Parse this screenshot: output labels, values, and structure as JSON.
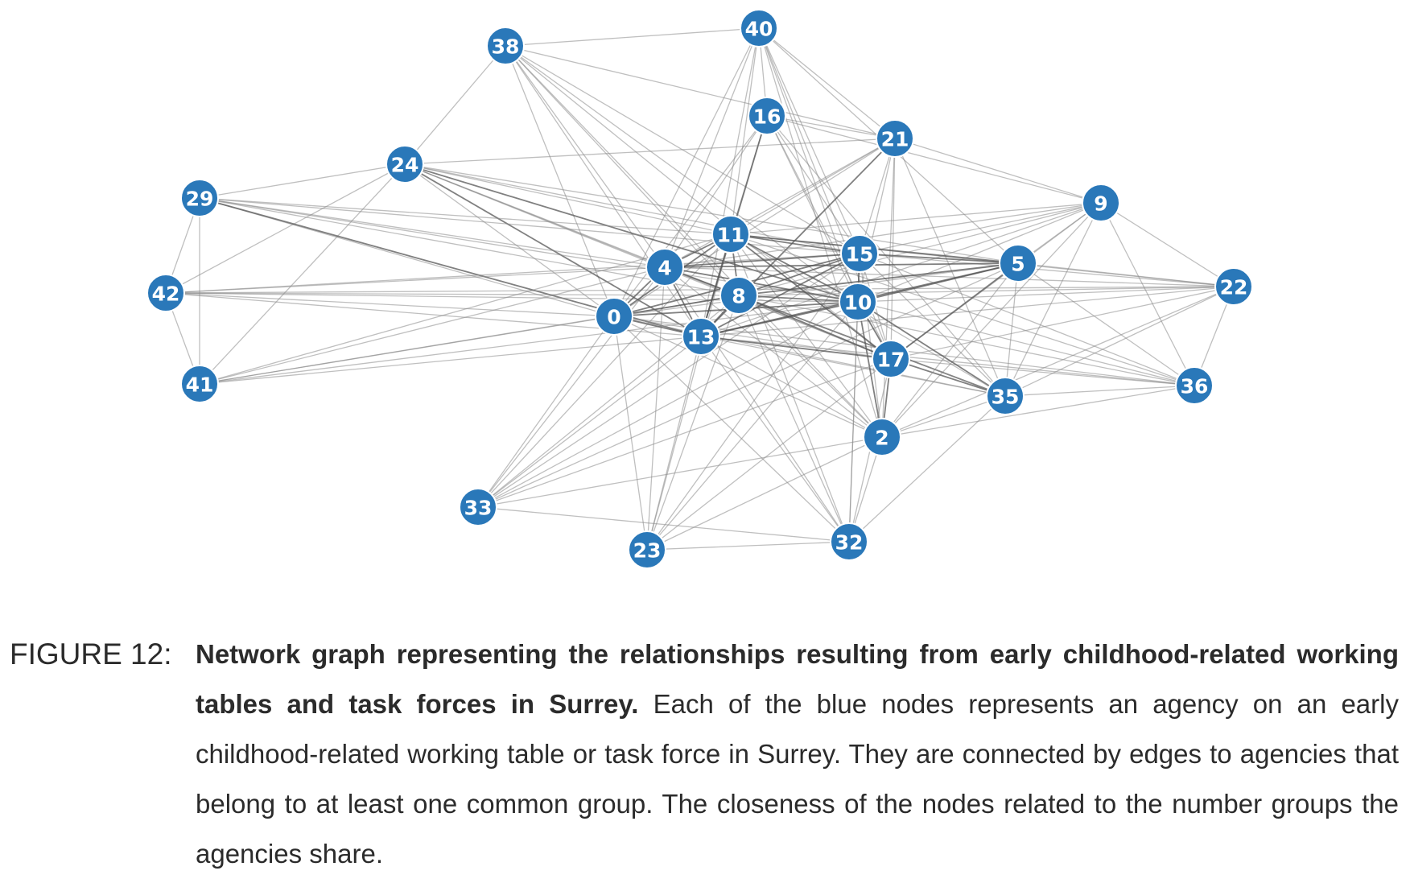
{
  "graph": {
    "nodes": [
      {
        "id": "0"
      },
      {
        "id": "2"
      },
      {
        "id": "4"
      },
      {
        "id": "5"
      },
      {
        "id": "8"
      },
      {
        "id": "9"
      },
      {
        "id": "10"
      },
      {
        "id": "11"
      },
      {
        "id": "13"
      },
      {
        "id": "15"
      },
      {
        "id": "16"
      },
      {
        "id": "17"
      },
      {
        "id": "21"
      },
      {
        "id": "22"
      },
      {
        "id": "23"
      },
      {
        "id": "24"
      },
      {
        "id": "29"
      },
      {
        "id": "32"
      },
      {
        "id": "33"
      },
      {
        "id": "35"
      },
      {
        "id": "36"
      },
      {
        "id": "38"
      },
      {
        "id": "40"
      },
      {
        "id": "41"
      },
      {
        "id": "42"
      }
    ],
    "node_color": "#2a78b9",
    "edge_color": "#8a8a8a",
    "edges": [
      [
        "38",
        "40"
      ],
      [
        "38",
        "24"
      ],
      [
        "38",
        "0"
      ],
      [
        "38",
        "4"
      ],
      [
        "38",
        "8"
      ],
      [
        "38",
        "13"
      ],
      [
        "38",
        "15"
      ],
      [
        "38",
        "10"
      ],
      [
        "38",
        "17"
      ],
      [
        "38",
        "21"
      ],
      [
        "38",
        "2"
      ],
      [
        "40",
        "16"
      ],
      [
        "40",
        "21"
      ],
      [
        "40",
        "11"
      ],
      [
        "40",
        "4"
      ],
      [
        "40",
        "13"
      ],
      [
        "40",
        "0"
      ],
      [
        "40",
        "15"
      ],
      [
        "40",
        "10"
      ],
      [
        "40",
        "17"
      ],
      [
        "40",
        "5"
      ],
      [
        "40",
        "2"
      ],
      [
        "16",
        "21"
      ],
      [
        "16",
        "11"
      ],
      [
        "16",
        "13"
      ],
      [
        "16",
        "4"
      ],
      [
        "16",
        "15"
      ],
      [
        "16",
        "10"
      ],
      [
        "16",
        "17"
      ],
      [
        "16",
        "9"
      ],
      [
        "16",
        "35"
      ],
      [
        "16",
        "0"
      ],
      [
        "21",
        "9"
      ],
      [
        "21",
        "11"
      ],
      [
        "21",
        "15"
      ],
      [
        "21",
        "10"
      ],
      [
        "21",
        "4"
      ],
      [
        "21",
        "13"
      ],
      [
        "21",
        "0"
      ],
      [
        "21",
        "17"
      ],
      [
        "21",
        "2"
      ],
      [
        "21",
        "35"
      ],
      [
        "21",
        "24"
      ],
      [
        "24",
        "29"
      ],
      [
        "24",
        "41"
      ],
      [
        "24",
        "11"
      ],
      [
        "24",
        "4"
      ],
      [
        "24",
        "8"
      ],
      [
        "24",
        "0"
      ],
      [
        "24",
        "13"
      ],
      [
        "24",
        "10"
      ],
      [
        "24",
        "15"
      ],
      [
        "24",
        "17"
      ],
      [
        "24",
        "5"
      ],
      [
        "24",
        "42"
      ],
      [
        "29",
        "42"
      ],
      [
        "29",
        "41"
      ],
      [
        "29",
        "4"
      ],
      [
        "29",
        "0"
      ],
      [
        "29",
        "13"
      ],
      [
        "29",
        "10"
      ],
      [
        "29",
        "8"
      ],
      [
        "29",
        "11"
      ],
      [
        "29",
        "15"
      ],
      [
        "42",
        "41"
      ],
      [
        "42",
        "4"
      ],
      [
        "42",
        "0"
      ],
      [
        "42",
        "10"
      ],
      [
        "42",
        "15"
      ],
      [
        "42",
        "8"
      ],
      [
        "42",
        "13"
      ],
      [
        "42",
        "22"
      ],
      [
        "41",
        "0"
      ],
      [
        "41",
        "4"
      ],
      [
        "41",
        "11"
      ],
      [
        "41",
        "8"
      ],
      [
        "41",
        "13"
      ],
      [
        "41",
        "10"
      ],
      [
        "9",
        "5"
      ],
      [
        "9",
        "15"
      ],
      [
        "9",
        "11"
      ],
      [
        "9",
        "8"
      ],
      [
        "9",
        "10"
      ],
      [
        "9",
        "4"
      ],
      [
        "9",
        "13"
      ],
      [
        "9",
        "17"
      ],
      [
        "9",
        "35"
      ],
      [
        "9",
        "2"
      ],
      [
        "9",
        "36"
      ],
      [
        "9",
        "22"
      ],
      [
        "22",
        "5"
      ],
      [
        "22",
        "10"
      ],
      [
        "22",
        "15"
      ],
      [
        "22",
        "8"
      ],
      [
        "22",
        "17"
      ],
      [
        "22",
        "13"
      ],
      [
        "22",
        "35"
      ],
      [
        "22",
        "2"
      ],
      [
        "22",
        "36"
      ],
      [
        "22",
        "4"
      ],
      [
        "22",
        "11"
      ],
      [
        "36",
        "35"
      ],
      [
        "36",
        "5"
      ],
      [
        "36",
        "10"
      ],
      [
        "36",
        "17"
      ],
      [
        "36",
        "8"
      ],
      [
        "36",
        "13"
      ],
      [
        "36",
        "15"
      ],
      [
        "36",
        "11"
      ],
      [
        "36",
        "2"
      ],
      [
        "36",
        "0"
      ],
      [
        "35",
        "2"
      ],
      [
        "35",
        "5"
      ],
      [
        "35",
        "17"
      ],
      [
        "35",
        "10"
      ],
      [
        "35",
        "15"
      ],
      [
        "35",
        "13"
      ],
      [
        "35",
        "8"
      ],
      [
        "35",
        "4"
      ],
      [
        "35",
        "11"
      ],
      [
        "35",
        "0"
      ],
      [
        "35",
        "32"
      ],
      [
        "2",
        "17"
      ],
      [
        "2",
        "10"
      ],
      [
        "2",
        "15"
      ],
      [
        "2",
        "13"
      ],
      [
        "2",
        "8"
      ],
      [
        "2",
        "0"
      ],
      [
        "2",
        "4"
      ],
      [
        "2",
        "11"
      ],
      [
        "2",
        "5"
      ],
      [
        "2",
        "33"
      ],
      [
        "2",
        "23"
      ],
      [
        "2",
        "32"
      ],
      [
        "33",
        "0"
      ],
      [
        "33",
        "4"
      ],
      [
        "33",
        "11"
      ],
      [
        "33",
        "8"
      ],
      [
        "33",
        "13"
      ],
      [
        "33",
        "15"
      ],
      [
        "33",
        "10"
      ],
      [
        "33",
        "17"
      ],
      [
        "33",
        "32"
      ],
      [
        "33",
        "5"
      ],
      [
        "23",
        "0"
      ],
      [
        "23",
        "4"
      ],
      [
        "23",
        "11"
      ],
      [
        "23",
        "8"
      ],
      [
        "23",
        "13"
      ],
      [
        "23",
        "15"
      ],
      [
        "23",
        "10"
      ],
      [
        "23",
        "17"
      ],
      [
        "23",
        "32"
      ],
      [
        "32",
        "0"
      ],
      [
        "32",
        "13"
      ],
      [
        "32",
        "8"
      ],
      [
        "32",
        "4"
      ],
      [
        "32",
        "15"
      ],
      [
        "32",
        "10"
      ],
      [
        "32",
        "17"
      ],
      [
        "32",
        "11"
      ],
      [
        "0",
        "4"
      ],
      [
        "0",
        "8"
      ],
      [
        "0",
        "11"
      ],
      [
        "0",
        "13"
      ],
      [
        "0",
        "15"
      ],
      [
        "0",
        "10"
      ],
      [
        "0",
        "17"
      ],
      [
        "0",
        "5"
      ],
      [
        "4",
        "11"
      ],
      [
        "4",
        "8"
      ],
      [
        "4",
        "13"
      ],
      [
        "4",
        "15"
      ],
      [
        "4",
        "10"
      ],
      [
        "4",
        "17"
      ],
      [
        "4",
        "5"
      ],
      [
        "11",
        "8"
      ],
      [
        "11",
        "13"
      ],
      [
        "11",
        "15"
      ],
      [
        "11",
        "10"
      ],
      [
        "11",
        "17"
      ],
      [
        "11",
        "5"
      ],
      [
        "8",
        "13"
      ],
      [
        "8",
        "15"
      ],
      [
        "8",
        "10"
      ],
      [
        "8",
        "17"
      ],
      [
        "8",
        "5"
      ],
      [
        "13",
        "15"
      ],
      [
        "13",
        "10"
      ],
      [
        "13",
        "17"
      ],
      [
        "13",
        "5"
      ],
      [
        "15",
        "10"
      ],
      [
        "15",
        "17"
      ],
      [
        "15",
        "5"
      ],
      [
        "10",
        "17"
      ],
      [
        "10",
        "5"
      ],
      [
        "17",
        "5"
      ]
    ],
    "strong_edges": [
      [
        "0",
        "4"
      ],
      [
        "0",
        "8"
      ],
      [
        "0",
        "11"
      ],
      [
        "0",
        "13"
      ],
      [
        "0",
        "15"
      ],
      [
        "0",
        "10"
      ],
      [
        "4",
        "11"
      ],
      [
        "4",
        "8"
      ],
      [
        "4",
        "13"
      ],
      [
        "4",
        "15"
      ],
      [
        "4",
        "10"
      ],
      [
        "4",
        "5"
      ],
      [
        "11",
        "8"
      ],
      [
        "11",
        "13"
      ],
      [
        "11",
        "15"
      ],
      [
        "11",
        "10"
      ],
      [
        "11",
        "5"
      ],
      [
        "11",
        "17"
      ],
      [
        "8",
        "13"
      ],
      [
        "8",
        "15"
      ],
      [
        "8",
        "10"
      ],
      [
        "8",
        "17"
      ],
      [
        "8",
        "5"
      ],
      [
        "13",
        "15"
      ],
      [
        "13",
        "10"
      ],
      [
        "13",
        "17"
      ],
      [
        "13",
        "5"
      ],
      [
        "15",
        "10"
      ],
      [
        "15",
        "5"
      ],
      [
        "10",
        "5"
      ],
      [
        "10",
        "17"
      ],
      [
        "17",
        "5"
      ],
      [
        "17",
        "35"
      ],
      [
        "10",
        "35"
      ],
      [
        "8",
        "35"
      ],
      [
        "29",
        "13"
      ],
      [
        "24",
        "13"
      ],
      [
        "24",
        "10"
      ],
      [
        "41",
        "15"
      ],
      [
        "16",
        "13"
      ],
      [
        "21",
        "13"
      ],
      [
        "2",
        "17"
      ],
      [
        "2",
        "10"
      ]
    ]
  },
  "caption": {
    "label": "FIGURE 12:",
    "bold": "Network graph representing the relationships resulting from early childhood-related working tables and task forces in Surrey.",
    "body": " Each of the blue nodes represents an agency on an early childhood-related working table or task force in Surrey.  They are connected by edges to agencies that belong to at least one common group.  The closeness of the nodes related to the number groups the agencies share."
  }
}
